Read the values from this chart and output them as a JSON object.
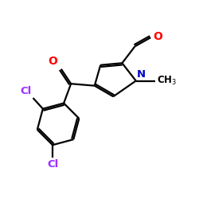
{
  "background_color": "#ffffff",
  "atom_colors": {
    "O": "#ff0000",
    "N": "#0000cc",
    "Cl": "#9b30ff",
    "C": "#000000"
  },
  "figsize": [
    2.5,
    2.5
  ],
  "dpi": 100
}
